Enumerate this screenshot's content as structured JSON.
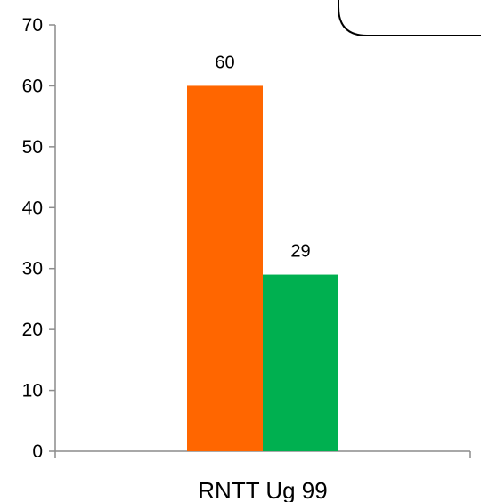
{
  "chart_data": {
    "type": "bar",
    "categories": [
      "RNTT Ug 99"
    ],
    "series": [
      {
        "values": [
          60
        ],
        "color": "#FF6600"
      },
      {
        "values": [
          29
        ],
        "color": "#00B050"
      }
    ],
    "title": "",
    "xlabel": "",
    "ylabel": "",
    "ylim": [
      0,
      70
    ],
    "yticks": [
      0,
      10,
      20,
      30,
      40,
      50,
      60,
      70
    ],
    "data_labels": true,
    "grid": false,
    "legend": "none"
  }
}
